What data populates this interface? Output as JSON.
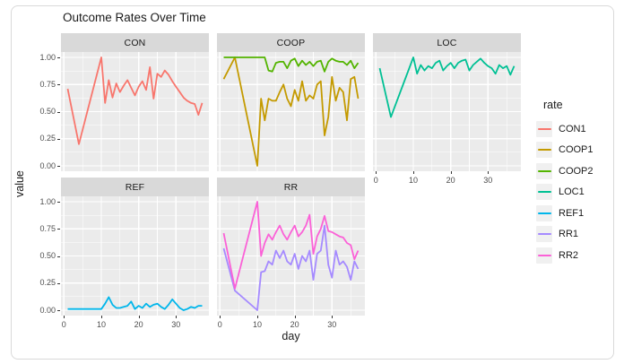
{
  "window": {
    "background": "#ffffff",
    "card_border": "#d9d9d9"
  },
  "style": {
    "panel_background": "#ebebeb",
    "strip_background": "#d9d9d9",
    "grid_color": "#ffffff",
    "tick_text_color": "#4d4d4d",
    "text_color": "#1a1a1a",
    "tick_mark_color": "#333333",
    "legend_key_background": "#f0f0f0"
  },
  "chart_data": {
    "type": "line",
    "title": "Outcome Rates Over Time",
    "xlabel": "day",
    "ylabel": "value",
    "legend_title": "rate",
    "legend_position": "right",
    "grid": true,
    "xlim": [
      -0.8,
      38.8
    ],
    "ylim": [
      -0.05,
      1.05
    ],
    "x_ticks": [
      0,
      10,
      20,
      30
    ],
    "x_tick_labels": [
      "0",
      "10",
      "20",
      "30"
    ],
    "x_minor_ticks": [
      5,
      15,
      25,
      35
    ],
    "y_ticks": [
      1.0,
      0.75,
      0.5,
      0.25,
      0.0
    ],
    "y_tick_labels": [
      "1.00",
      "0.75",
      "0.50",
      "0.25",
      "0.00"
    ],
    "y_minor_ticks": [
      0.875,
      0.625,
      0.375,
      0.125
    ],
    "x": [
      1,
      4,
      10,
      11,
      12,
      13,
      14,
      15,
      16,
      17,
      18,
      19,
      20,
      21,
      22,
      23,
      24,
      25,
      26,
      27,
      28,
      29,
      30,
      31,
      32,
      33,
      34,
      35,
      36,
      37
    ],
    "facets": [
      {
        "name": "CON",
        "series": [
          {
            "name": "CON1",
            "color": "#F8766D",
            "values": [
              0.71,
              0.2,
              1.0,
              0.58,
              0.79,
              0.63,
              0.76,
              0.68,
              0.74,
              0.79,
              0.72,
              0.65,
              0.73,
              0.78,
              0.7,
              0.91,
              0.62,
              0.85,
              0.82,
              0.88,
              0.84,
              0.78,
              0.73,
              0.68,
              0.63,
              0.6,
              0.58,
              0.57,
              0.47,
              0.58
            ]
          }
        ]
      },
      {
        "name": "COOP",
        "series": [
          {
            "name": "COOP1",
            "color": "#C49A00",
            "values": [
              0.8,
              1.0,
              0.0,
              0.62,
              0.42,
              0.62,
              0.6,
              0.6,
              0.68,
              0.75,
              0.62,
              0.55,
              0.7,
              0.6,
              0.78,
              0.6,
              0.65,
              0.62,
              0.75,
              0.78,
              0.28,
              0.45,
              0.82,
              0.6,
              0.72,
              0.68,
              0.42,
              0.8,
              0.82,
              0.62
            ]
          },
          {
            "name": "COOP2",
            "color": "#53B400",
            "values": [
              1.0,
              1.0,
              1.0,
              1.0,
              1.0,
              0.88,
              0.87,
              0.95,
              0.96,
              0.96,
              0.9,
              0.97,
              0.99,
              0.92,
              0.97,
              0.93,
              0.96,
              0.92,
              0.96,
              0.97,
              0.87,
              0.96,
              0.99,
              0.97,
              0.96,
              0.96,
              0.93,
              0.97,
              0.9,
              0.95
            ]
          }
        ]
      },
      {
        "name": "LOC",
        "series": [
          {
            "name": "LOC1",
            "color": "#00C094",
            "values": [
              0.9,
              0.45,
              1.0,
              0.85,
              0.93,
              0.88,
              0.92,
              0.9,
              0.95,
              0.97,
              0.88,
              0.92,
              0.95,
              0.9,
              0.95,
              0.97,
              0.98,
              0.88,
              0.93,
              0.96,
              0.99,
              0.95,
              0.92,
              0.9,
              0.85,
              0.93,
              0.9,
              0.92,
              0.84,
              0.92
            ]
          }
        ]
      },
      {
        "name": "REF",
        "series": [
          {
            "name": "REF1",
            "color": "#00B6EB",
            "values": [
              0.01,
              0.01,
              0.01,
              0.06,
              0.12,
              0.05,
              0.02,
              0.02,
              0.03,
              0.04,
              0.08,
              0.01,
              0.04,
              0.02,
              0.06,
              0.03,
              0.05,
              0.06,
              0.03,
              0.01,
              0.05,
              0.1,
              0.06,
              0.02,
              0.0,
              0.01,
              0.03,
              0.02,
              0.04,
              0.04
            ]
          }
        ]
      },
      {
        "name": "RR",
        "series": [
          {
            "name": "RR1",
            "color": "#A58AFF",
            "values": [
              0.57,
              0.18,
              0.0,
              0.35,
              0.36,
              0.45,
              0.42,
              0.55,
              0.48,
              0.55,
              0.45,
              0.42,
              0.52,
              0.38,
              0.5,
              0.45,
              0.55,
              0.28,
              0.52,
              0.55,
              0.78,
              0.42,
              0.3,
              0.55,
              0.42,
              0.45,
              0.4,
              0.28,
              0.45,
              0.38
            ]
          },
          {
            "name": "RR2",
            "color": "#FB61D7",
            "values": [
              0.71,
              0.2,
              1.0,
              0.5,
              0.62,
              0.7,
              0.65,
              0.72,
              0.78,
              0.7,
              0.65,
              0.72,
              0.78,
              0.68,
              0.72,
              0.78,
              0.88,
              0.52,
              0.68,
              0.75,
              0.87,
              0.73,
              0.72,
              0.7,
              0.68,
              0.67,
              0.62,
              0.6,
              0.47,
              0.55
            ]
          }
        ]
      }
    ]
  }
}
